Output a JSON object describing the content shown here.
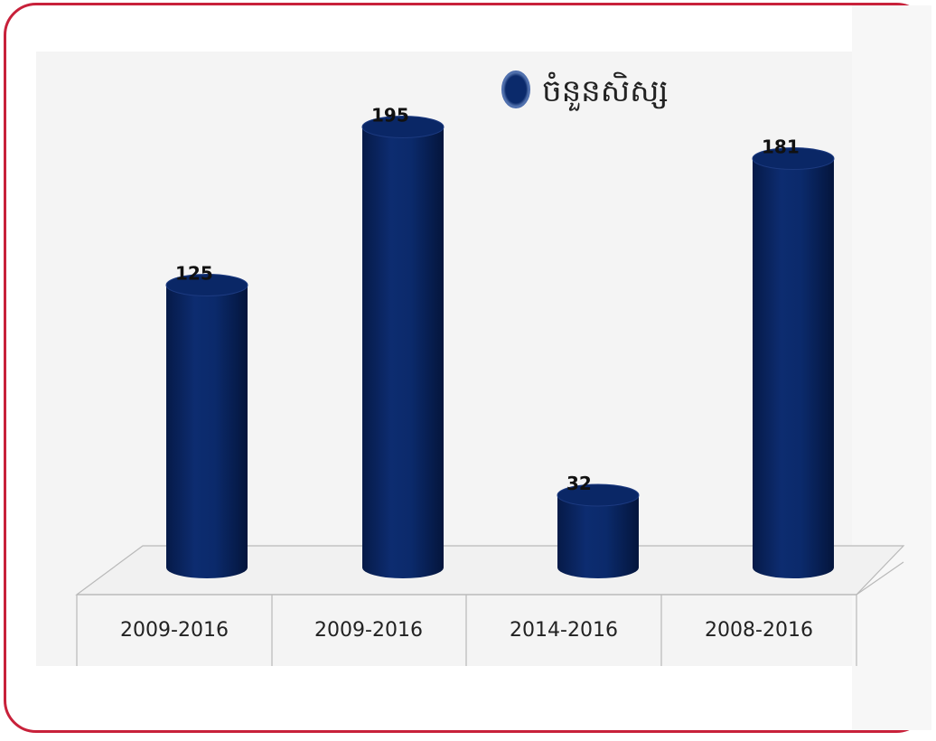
{
  "chart_data": {
    "type": "bar",
    "style": "3d-cylinder",
    "categories": [
      "2009-2016",
      "2009-2016",
      "2014-2016",
      "2008-2016"
    ],
    "series": [
      {
        "name": "ចំនួនសិស្ស",
        "values": [
          125,
          195,
          32,
          181
        ]
      }
    ],
    "data_labels": [
      "125",
      "195",
      "32",
      "181"
    ],
    "legend_position": "top-right",
    "grid": false,
    "ylim": [
      0,
      200
    ],
    "colors": {
      "bar": "#0b2a6b",
      "bar_dark": "#061a48",
      "bar_light": "#1e3f8a",
      "frame": "#c8213a"
    }
  }
}
